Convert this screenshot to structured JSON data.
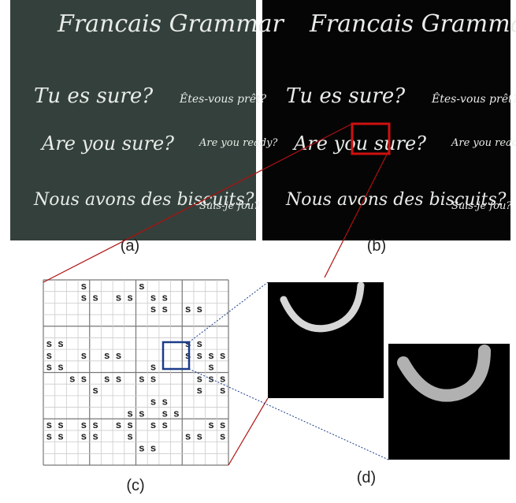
{
  "panels": {
    "a": {
      "label": "(a)",
      "lines": [
        "Francais Grammar",
        "Tu es sure?",
        "Êtes-vous prêt?",
        "Are you sure?",
        "Are you ready?",
        "Nous avons des biscuits?",
        "Suis-je fou?"
      ]
    },
    "b": {
      "label": "(b)",
      "lines": [
        "Francais Grammar",
        "Tu es sure?",
        "Êtes-vous prêt?",
        "Are you sure?",
        "Are you ready?",
        "Nous avons des biscuits?",
        "Suis-je fou?"
      ]
    },
    "c": {
      "label": "(c)",
      "rows": [
        "   s    s       ",
        "   ss ss ss     ",
        "         ss ss  ",
        "                ",
        "                ",
        "ss          ss  ",
        "s  s ss     ssss",
        "ss       s    s ",
        "  ss ss ss   sss",
        "    s        s s",
        "         ss     ",
        "       ss ss    ",
        "ss ss ss ss   ss",
        "ss ss  s    ss s",
        "        ss      ",
        "                "
      ]
    },
    "d": {
      "label": "(d)"
    }
  }
}
